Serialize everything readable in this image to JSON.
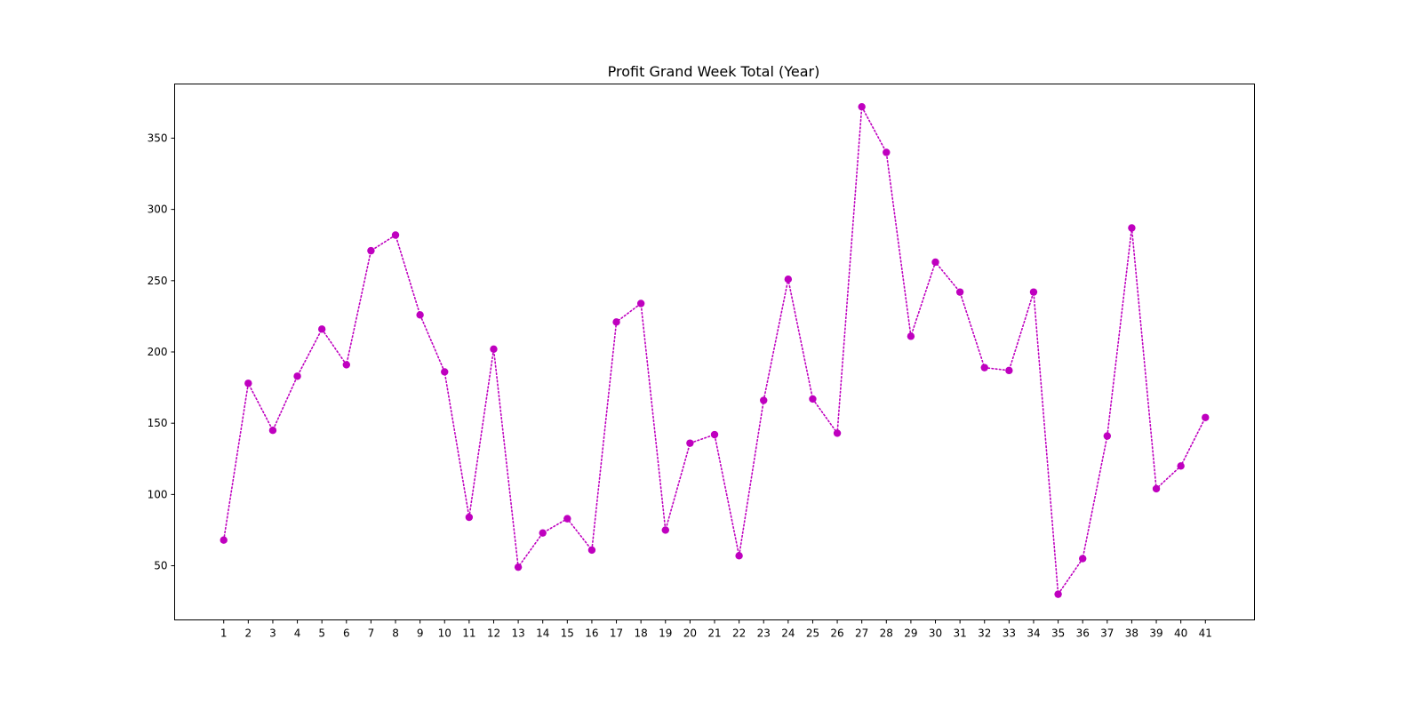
{
  "chart_data": {
    "type": "line",
    "title": "Profit Grand Week Total (Year)",
    "xlabel": "",
    "ylabel": "",
    "x": [
      1,
      2,
      3,
      4,
      5,
      6,
      7,
      8,
      9,
      10,
      11,
      12,
      13,
      14,
      15,
      16,
      17,
      18,
      19,
      20,
      21,
      22,
      23,
      24,
      25,
      26,
      27,
      28,
      29,
      30,
      31,
      32,
      33,
      34,
      35,
      36,
      37,
      38,
      39,
      40,
      41
    ],
    "x_tick_labels": [
      "1",
      "2",
      "3",
      "4",
      "5",
      "6",
      "7",
      "8",
      "9",
      "10",
      "11",
      "12",
      "13",
      "14",
      "15",
      "16",
      "17",
      "18",
      "19",
      "20",
      "21",
      "22",
      "23",
      "24",
      "25",
      "26",
      "27",
      "28",
      "29",
      "30",
      "31",
      "32",
      "33",
      "34",
      "35",
      "36",
      "37",
      "38",
      "39",
      "40",
      "41"
    ],
    "series": [
      {
        "values": [
          68,
          178,
          145,
          183,
          216,
          191,
          271,
          282,
          226,
          186,
          84,
          202,
          49,
          73,
          83,
          61,
          221,
          234,
          75,
          136,
          142,
          57,
          166,
          251,
          167,
          143,
          372,
          340,
          211,
          263,
          242,
          189,
          187,
          242,
          30,
          55,
          141,
          287,
          104,
          120,
          154
        ]
      }
    ],
    "xlim": [
      -1,
      43
    ],
    "ylim": [
      12,
      388
    ],
    "y_ticks": [
      50,
      100,
      150,
      200,
      250,
      300,
      350
    ],
    "y_tick_labels": [
      "50",
      "100",
      "150",
      "200",
      "250",
      "300",
      "350"
    ],
    "line_style": "dotted",
    "marker": "circle",
    "color": "#bf00bf",
    "grid": false,
    "legend": "none"
  }
}
